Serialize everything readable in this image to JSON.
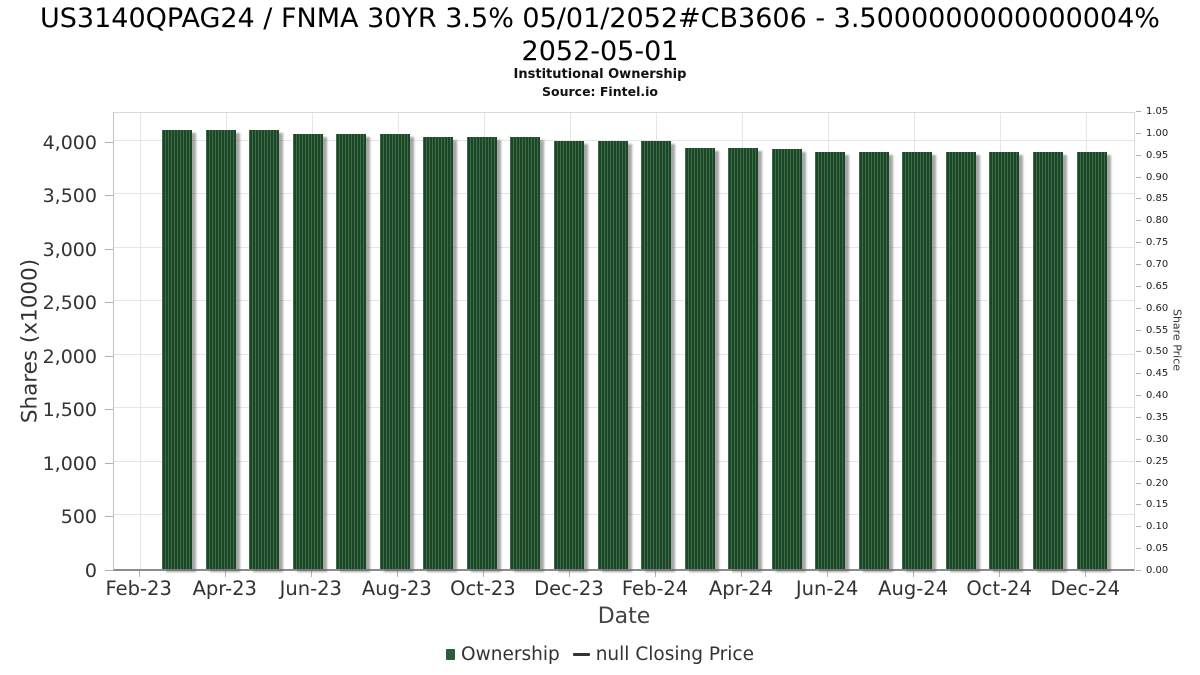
{
  "header": {
    "title_line1": "US3140QPAG24 / FNMA 30YR 3.5% 05/01/2052#CB3606 - 3.5000000000000004%",
    "title_line2": "2052-05-01",
    "subtitle": "Institutional Ownership",
    "source": "Source: Fintel.io"
  },
  "chart_data": {
    "type": "bar",
    "title": "US3140QPAG24 / FNMA 30YR 3.5% 05/01/2052#CB3606 - 3.5000000000000004% 2052-05-01",
    "subtitle": "Institutional Ownership",
    "source": "Source: Fintel.io",
    "xlabel": "Date",
    "ylabel_left": "Shares (x1000)",
    "ylabel_right": "Share Price",
    "categories": [
      "Feb-23",
      "Mar-23",
      "Apr-23",
      "May-23",
      "Jun-23",
      "Jul-23",
      "Aug-23",
      "Sep-23",
      "Oct-23",
      "Nov-23",
      "Dec-23",
      "Jan-24",
      "Feb-24",
      "Mar-24",
      "Apr-24",
      "May-24",
      "Jun-24",
      "Jul-24",
      "Aug-24",
      "Sep-24",
      "Oct-24",
      "Nov-24"
    ],
    "series": [
      {
        "name": "Ownership",
        "type": "column",
        "values": [
          4100,
          4100,
          4100,
          4060,
          4060,
          4060,
          4040,
          4040,
          4035,
          4000,
          4000,
          4000,
          3930,
          3930,
          3925,
          3900,
          3900,
          3900,
          3900,
          3900,
          3900,
          3900
        ],
        "color": "#2c5c38"
      },
      {
        "name": "null Closing Price",
        "type": "line",
        "values": [],
        "color": "#333333"
      }
    ],
    "x_tick_labels": [
      "Feb-23",
      "Apr-23",
      "Jun-23",
      "Aug-23",
      "Oct-23",
      "Dec-23",
      "Feb-24",
      "Apr-24",
      "Jun-24",
      "Aug-24",
      "Oct-24",
      "Dec-24"
    ],
    "y_axis_left": {
      "tick_labels": [
        "0",
        "500",
        "1,000",
        "1,500",
        "2,000",
        "2,500",
        "3,000",
        "3,500",
        "4,000"
      ],
      "tick_values": [
        0,
        500,
        1000,
        1500,
        2000,
        2500,
        3000,
        3500,
        4000
      ],
      "min": 0,
      "max": 4288
    },
    "y_axis_right": {
      "tick_labels": [
        "0.00",
        "0.05",
        "0.10",
        "0.15",
        "0.20",
        "0.25",
        "0.30",
        "0.35",
        "0.40",
        "0.45",
        "0.50",
        "0.55",
        "0.60",
        "0.65",
        "0.70",
        "0.75",
        "0.80",
        "0.85",
        "0.90",
        "0.95",
        "1.00",
        "1.05"
      ],
      "min": 0,
      "max": 1.05
    },
    "grid": true,
    "legend_position": "bottom"
  },
  "legend": {
    "items": [
      {
        "label": "Ownership",
        "marker": "square",
        "color": "#2c5c38"
      },
      {
        "label": "null Closing Price",
        "marker": "line",
        "color": "#333333"
      }
    ]
  },
  "colors": {
    "bar_dark": "#1e4527",
    "bar_stripe": "#396f47",
    "grid": "#e6e6e6",
    "axis_line": "#b0b0b0",
    "text": "#333333"
  }
}
